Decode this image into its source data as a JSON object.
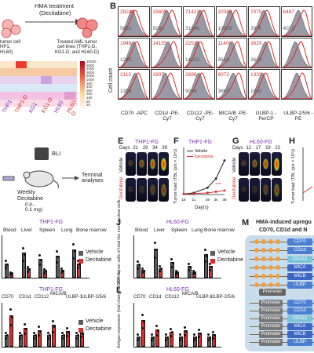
{
  "panelA": {
    "hma_label": "HMA treatment",
    "drug_label": "(Decitabine)",
    "left_caption_lines": [
      "tumor cell",
      "HP1,",
      "HL60)"
    ],
    "treated_lines": [
      "Treated AML tumor",
      "cell lines (THP1-D,",
      "KG1-D, and HL60-D)"
    ],
    "heatmap_cols": [
      "THP1",
      "THP1-D",
      "KG1",
      "KG1-D",
      "HL60",
      "HL60-D"
    ],
    "legend_values": [
      "10000",
      "5000",
      "4000",
      "3000",
      "2000",
      "1000",
      "500",
      "400",
      "300",
      "200",
      "100",
      "50",
      "20"
    ]
  },
  "panelB": {
    "letter": "B",
    "y_label": "Cell count",
    "x_labels": [
      "CD70 -APC",
      "CD1d -PE-Cy7",
      "CD112 -PE-Cy7",
      "MICA/B -PE-Cy7",
      "ULBP-1 -PerCP",
      "ULBP-2/5/6 -PE"
    ],
    "row1_red": [
      "28244",
      "15609",
      "71423",
      "20383",
      "7075",
      "6487"
    ],
    "row1_gray": [
      "5663",
      "9260",
      "31846",
      "10509",
      "3975",
      "4072"
    ],
    "row2_red": [
      "1949",
      "14155",
      "22533",
      "11400",
      "3629",
      ""
    ],
    "row2_gray": [
      "1245",
      "",
      "14150",
      "9614",
      "3619",
      ""
    ],
    "row3_red": [
      "2112",
      "1907",
      "2696",
      "6072",
      "1333",
      ""
    ],
    "row3_gray": [
      "1396",
      "",
      "9044",
      "3865",
      "1002",
      ""
    ]
  },
  "panelBLI": {
    "label": "BLI",
    "weekly": "Weekly",
    "drug": "Decitabine",
    "dose_lines": [
      "(i.p.,",
      "0.1 mg)"
    ],
    "terminal": "Terminal analyses"
  },
  "panelE": {
    "letter": "E",
    "title": "THP1-FG",
    "days_label": "Days",
    "days": [
      "21",
      "29",
      "34",
      "39"
    ],
    "row1": "Vehicle",
    "row2": "Decitabine"
  },
  "panelF": {
    "letter": "F",
    "title": "THP1-FG",
    "ylabel": "Tumor load (TBL (p/s × 10⁹))",
    "xlabel": "Day(s)",
    "legend": [
      "Vehicle",
      "Decitabine"
    ],
    "ticks": [
      "15",
      "21",
      "29",
      "34",
      "39"
    ],
    "yticks": [
      "0",
      "2",
      "4",
      "6",
      "8"
    ],
    "sig": "****"
  },
  "panelG": {
    "letter": "G",
    "title": "HL60-FG",
    "days_label": "Days",
    "days": [
      "12",
      "17",
      "19",
      "22"
    ],
    "row1": "Vehicle",
    "row2": "Decitabine"
  },
  "panelH": {
    "letter": "H",
    "ylabel": "Tumor load (TBL (p/s × 10⁹))"
  },
  "panelI": {
    "title1": "THP1-FG",
    "groups1": [
      "Blood",
      "Liver",
      "Spleen",
      "Lung",
      "Bone marrow"
    ],
    "legend": [
      "Vehicle",
      "Decitabine"
    ],
    "title2": "THP1-FG",
    "groups2": [
      "CD70",
      "CD1d",
      "CD112",
      "MICA/B",
      "ULBP-1",
      "ULBP-2/5/6"
    ]
  },
  "panelJ": {
    "letter": "J",
    "title": "HL60-FG",
    "ylabel": "% GFP⁺ tumor cells of total live mononuclear cells",
    "groups": [
      "Blood",
      "Liver",
      "Spleen",
      "Lung",
      "Bone marrow"
    ],
    "legend": [
      "Vehicle",
      "Decitabine"
    ],
    "yticks": [
      "0",
      "10",
      "20",
      "30",
      "40"
    ]
  },
  "panelL": {
    "letter": "L",
    "title": "HL60-FG",
    "ylabel": "Antigen expression (fold change to Vehicle)",
    "groups": [
      "CD70",
      "CD1d",
      "CD112",
      "MICA/B",
      "ULBP-1",
      "ULBP-2/5/6"
    ],
    "yticks": [
      "0",
      "1",
      "2",
      "3",
      "4"
    ]
  },
  "panelM": {
    "letter": "M",
    "title_lines": [
      "HMA-induced upregu",
      "CD70, CD1d and N"
    ],
    "genes": [
      "CD70",
      "CD1d",
      "CD112",
      "MICA",
      "MICB",
      "ULBP"
    ],
    "genes2": [
      "CD70",
      "CD1d",
      "CD112",
      "MICA",
      "MICB",
      "ULBP"
    ],
    "promoter": "Promoter"
  },
  "colors": {
    "vehicle": "#5a5a5a",
    "decitabine": "#d62f2f",
    "title_purple": "#7a2bb8",
    "gene_colors": [
      "#4a7fd1",
      "#4a7fd1",
      "#7ec4d9",
      "#3c67c4",
      "#3c67c4",
      "#4a7fd1"
    ]
  }
}
